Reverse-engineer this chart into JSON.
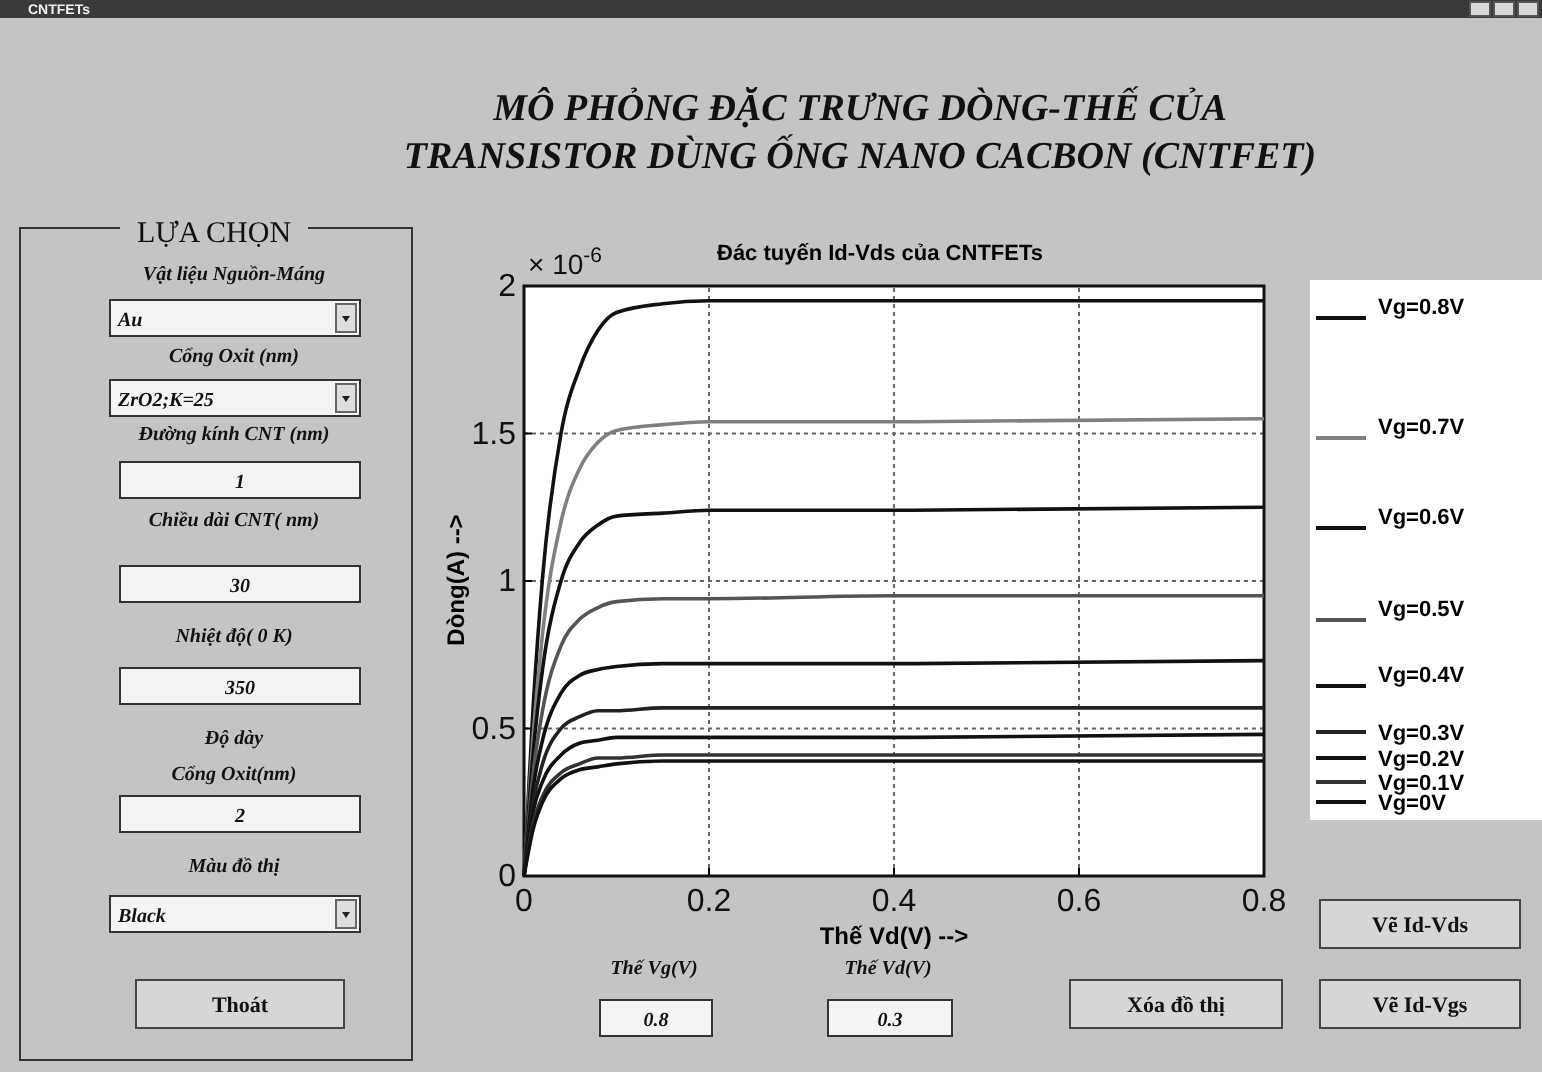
{
  "chart_data": {
    "type": "line",
    "title": "MÔ PHỎNG ĐẶC TRƯNG DÒNG-THẾ CỦA TRANSISTOR DÙNG ỐNG NANO CACBON (CNTFET)",
    "subtitle": "Đác tuyến Id-Vds của CNTFETs",
    "xlabel": "Thế Vd(V) -->",
    "ylabel": "Dòng(A) -->",
    "x": [
      0,
      0.01,
      0.02,
      0.04,
      0.06,
      0.08,
      0.1,
      0.15,
      0.2,
      0.4,
      0.8
    ],
    "series": [
      {
        "name": "Vg=0.8V",
        "color": "#111111",
        "values": [
          0,
          0.58,
          1.01,
          1.5,
          1.72,
          1.85,
          1.91,
          1.94,
          1.95,
          1.95,
          1.95
        ]
      },
      {
        "name": "Vg=0.7V",
        "color": "#808080",
        "values": [
          0,
          0.48,
          0.82,
          1.2,
          1.38,
          1.47,
          1.51,
          1.53,
          1.54,
          1.54,
          1.55
        ]
      },
      {
        "name": "Vg=0.6V",
        "color": "#111111",
        "values": [
          0,
          0.42,
          0.7,
          1.0,
          1.13,
          1.19,
          1.22,
          1.23,
          1.24,
          1.24,
          1.25
        ]
      },
      {
        "name": "Vg=0.5V",
        "color": "#555555",
        "values": [
          0,
          0.35,
          0.56,
          0.78,
          0.87,
          0.91,
          0.93,
          0.94,
          0.94,
          0.95,
          0.95
        ]
      },
      {
        "name": "Vg=0.4V",
        "color": "#111111",
        "values": [
          0,
          0.3,
          0.46,
          0.62,
          0.68,
          0.7,
          0.71,
          0.72,
          0.72,
          0.72,
          0.73
        ]
      },
      {
        "name": "Vg=0.3V",
        "color": "#222222",
        "values": [
          0,
          0.25,
          0.38,
          0.5,
          0.54,
          0.56,
          0.56,
          0.57,
          0.57,
          0.57,
          0.57
        ]
      },
      {
        "name": "Vg=0.2V",
        "color": "#111111",
        "values": [
          0,
          0.22,
          0.32,
          0.41,
          0.45,
          0.46,
          0.47,
          0.47,
          0.47,
          0.47,
          0.48
        ]
      },
      {
        "name": "Vg=0.1V",
        "color": "#333333",
        "values": [
          0,
          0.18,
          0.27,
          0.35,
          0.38,
          0.4,
          0.4,
          0.41,
          0.41,
          0.41,
          0.41
        ]
      },
      {
        "name": "Vg=0V",
        "color": "#111111",
        "values": [
          0,
          0.16,
          0.25,
          0.33,
          0.36,
          0.37,
          0.38,
          0.39,
          0.39,
          0.39,
          0.39
        ]
      }
    ],
    "xlim": [
      0,
      0.8
    ],
    "xticks": [
      0,
      0.2,
      0.4,
      0.6,
      0.8
    ],
    "ylim": [
      0,
      2
    ],
    "yticks": [
      0,
      0.5,
      1,
      1.5,
      2
    ],
    "grid": true,
    "legend": "right",
    "line_style": "solid",
    "annotations": [
      "CNTFETs",
      "× 10$^{-6}$",
      "LỰA CHỌN",
      "Vật liệu Nguồn-Máng",
      "Au",
      "Cổng Oxit (nm)",
      "ZrO2;K=25",
      "Đường kính CNT (nm)",
      "1",
      "Chiều dài CNT( nm)",
      "30",
      "Nhiệt độ( 0 K)",
      "350",
      "Độ dày",
      "Cổng Oxit(nm)",
      "2",
      "Màu đồ thị",
      "Black",
      "Thoát",
      "Thế Vg(V)",
      "0.8",
      "Thế Vd(V)",
      "0.3",
      "Xóa đồ thị",
      "Vẽ Id-Vds",
      "Vẽ Id-Vgs"
    ]
  }
}
